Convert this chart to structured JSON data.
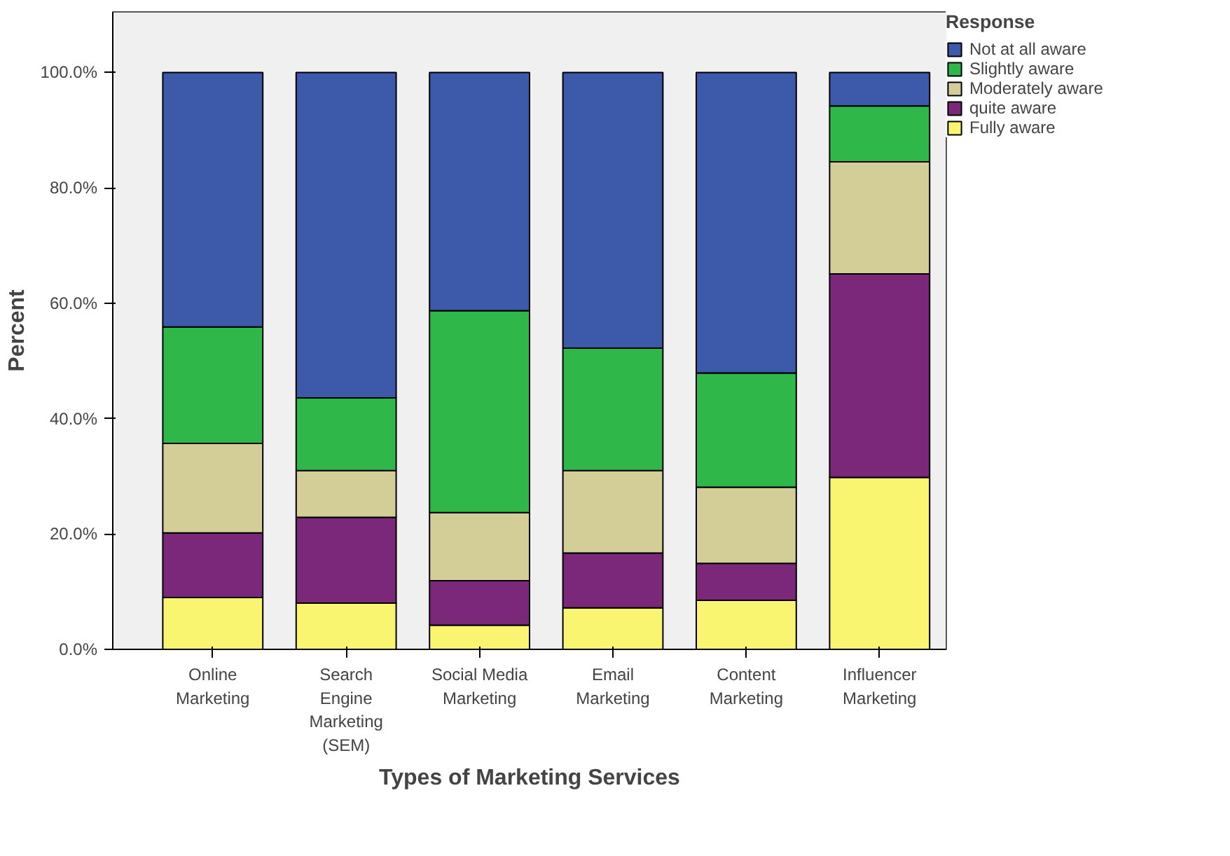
{
  "chart_data": {
    "type": "bar",
    "stacked": true,
    "xlabel": "Types of Marketing Services",
    "ylabel": "Percent",
    "legend_title": "Response",
    "legend": "top right",
    "grid": false,
    "categories": [
      "Online Marketing",
      "Search Engine Marketing (SEM)",
      "Social Media Marketing",
      "Email Marketing",
      "Content Marketing",
      "Influencer Marketing"
    ],
    "ylim": [
      0,
      110.5
    ],
    "yticks": [
      {
        "value": 0,
        "label": "0.0%"
      },
      {
        "value": 20,
        "label": "20.0%"
      },
      {
        "value": 40,
        "label": "40.0%"
      },
      {
        "value": 60,
        "label": "60.0%"
      },
      {
        "value": 80,
        "label": "80.0%"
      },
      {
        "value": 100,
        "label": "100.0%"
      }
    ],
    "series": [
      {
        "name": "Fully aware",
        "color": "#f9f571",
        "values": [
          9.0,
          8.0,
          4.2,
          7.2,
          8.5,
          29.8
        ]
      },
      {
        "name": "quite aware",
        "color": "#7b287b",
        "values": [
          11.2,
          14.9,
          7.7,
          9.5,
          6.4,
          35.3
        ]
      },
      {
        "name": "Moderately aware",
        "color": "#d3ce97",
        "values": [
          15.5,
          8.1,
          11.8,
          14.3,
          13.2,
          19.4
        ]
      },
      {
        "name": "Slightly aware",
        "color": "#2fb74a",
        "values": [
          20.2,
          12.6,
          35.0,
          21.2,
          19.8,
          9.7
        ]
      },
      {
        "name": "Not at all aware",
        "color": "#3d59aa",
        "values": [
          44.1,
          56.4,
          41.3,
          47.8,
          52.1,
          5.8
        ]
      }
    ]
  }
}
